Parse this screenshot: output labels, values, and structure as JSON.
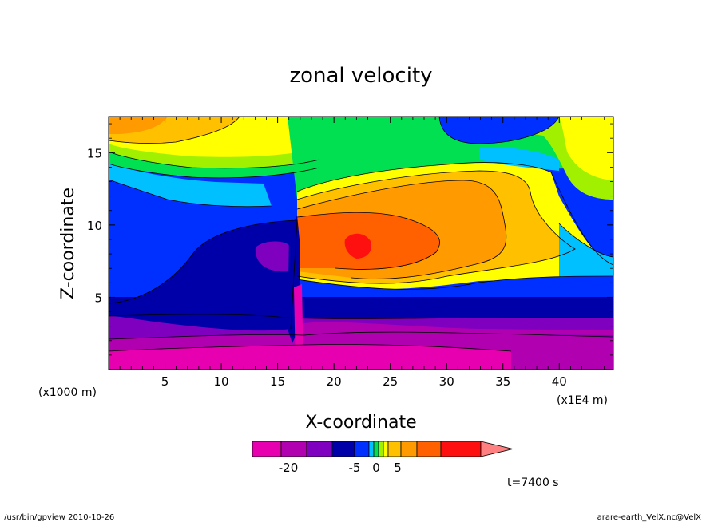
{
  "chart_data": {
    "type": "heatmap",
    "title": "zonal velocity",
    "xlabel": "X-coordinate",
    "ylabel": "Z-coordinate",
    "x_unit": "(x1E4 m)",
    "y_unit": "(x1000 m)",
    "x_ticks": [
      "5",
      "10",
      "15",
      "20",
      "25",
      "30",
      "35",
      "40"
    ],
    "y_ticks": [
      "5",
      "10",
      "15"
    ],
    "xlim": [
      0,
      44.8
    ],
    "ylim": [
      0,
      17.5
    ],
    "colorbar": {
      "labels": [
        "-20",
        "-5",
        "0",
        "5"
      ],
      "colors": [
        "#e600b0",
        "#b000b0",
        "#8000c0",
        "#0000a8",
        "#0030ff",
        "#00c0ff",
        "#00e050",
        "#a0f000",
        "#ffff00",
        "#ffc000",
        "#ff9a00",
        "#ff6000",
        "#ff1010",
        "#ff8080"
      ]
    },
    "annotation": "t=7400 s"
  },
  "footer": {
    "left": "/usr/bin/gpview   2010-10-26",
    "right": "arare-earth_VelX.nc@VelX"
  }
}
